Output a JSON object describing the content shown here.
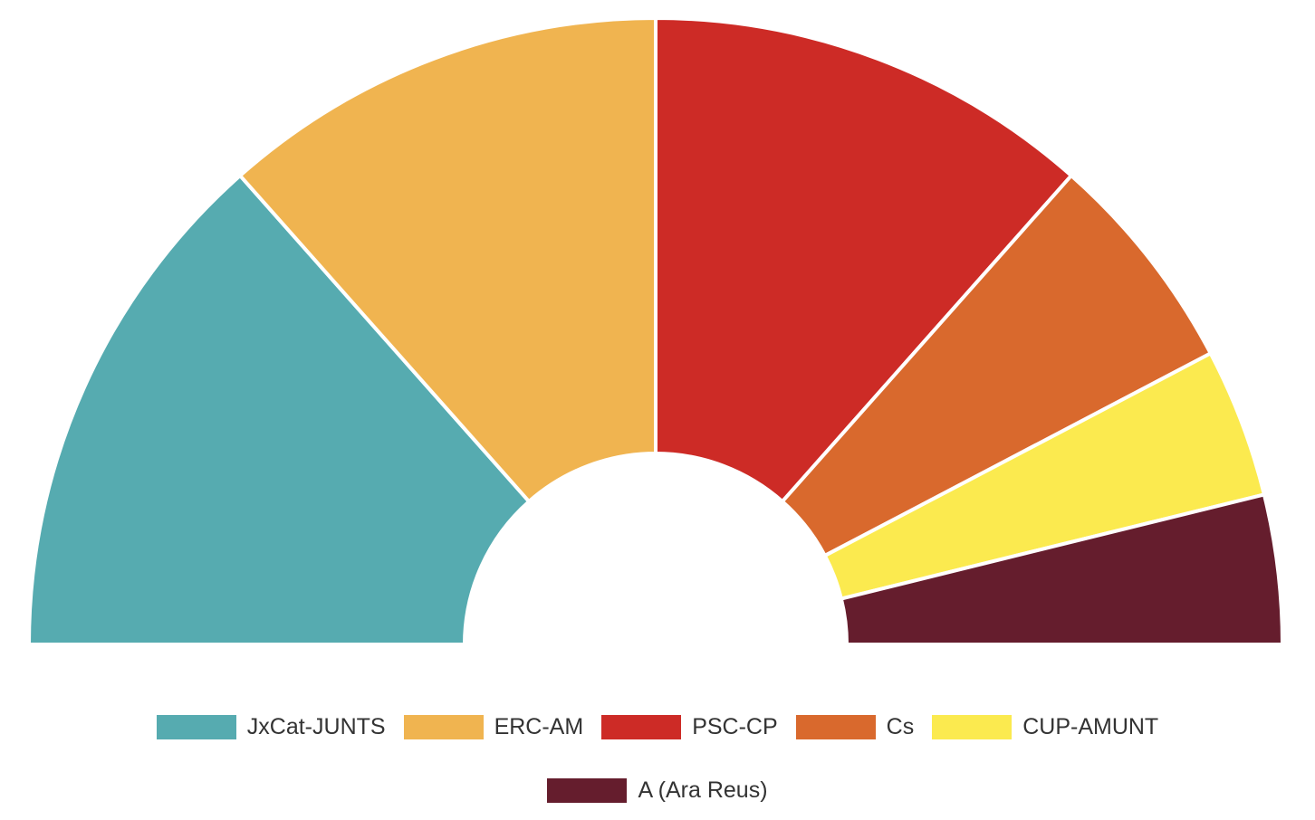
{
  "chart_data": {
    "type": "pie",
    "subtype": "semicircle-donut",
    "title": "",
    "categories": [
      "JxCat-JUNTS",
      "ERC-AM",
      "PSC-CP",
      "Cs",
      "CUP-AMUNT",
      "A (Ara Reus)"
    ],
    "values": [
      7,
      6,
      6,
      3,
      2,
      2
    ],
    "colors": [
      "#56abb0",
      "#f0b450",
      "#cd2b26",
      "#d9692d",
      "#fbea4f",
      "#651d2d"
    ],
    "legend_position": "bottom"
  }
}
